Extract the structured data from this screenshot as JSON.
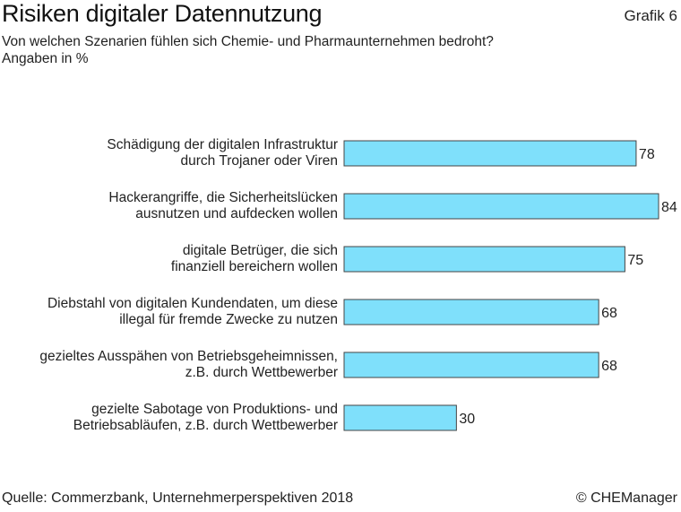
{
  "header": {
    "title": "Risiken digitaler Datennutzung",
    "figure_tag": "Grafik 6",
    "subtitle": "Von welchen Szenarien fühlen sich Chemie- und Pharmaunternehmen bedroht?",
    "unit_note": "Angaben in %"
  },
  "footer": {
    "source": "Quelle: Commerzbank, Unternehmerperspektiven 2018",
    "copyright": "© CHEManager"
  },
  "colors": {
    "bar_fill": "#7fe0fb",
    "bar_stroke": "#444444"
  },
  "chart_data": {
    "type": "bar",
    "orientation": "horizontal",
    "title": "Risiken digitaler Datennutzung",
    "xlabel": "",
    "ylabel": "",
    "unit": "%",
    "xlim": [
      0,
      84
    ],
    "categories": [
      [
        "Schädigung der digitalen Infrastruktur",
        "durch Trojaner oder Viren"
      ],
      [
        "Hackerangriffe, die Sicherheitslücken",
        "ausnutzen und aufdecken wollen"
      ],
      [
        "digitale Betrüger, die sich",
        "finanziell bereichern wollen"
      ],
      [
        "Diebstahl von digitalen Kundendaten, um diese",
        "illegal für fremde Zwecke zu nutzen"
      ],
      [
        "gezieltes Ausspähen von Betriebsgeheimnissen,",
        "z.B. durch Wettbewerber"
      ],
      [
        "gezielte Sabotage von Produktions- und",
        "Betriebsabläufen, z.B. durch Wettbewerber"
      ]
    ],
    "values": [
      78,
      84,
      75,
      68,
      68,
      30
    ]
  }
}
